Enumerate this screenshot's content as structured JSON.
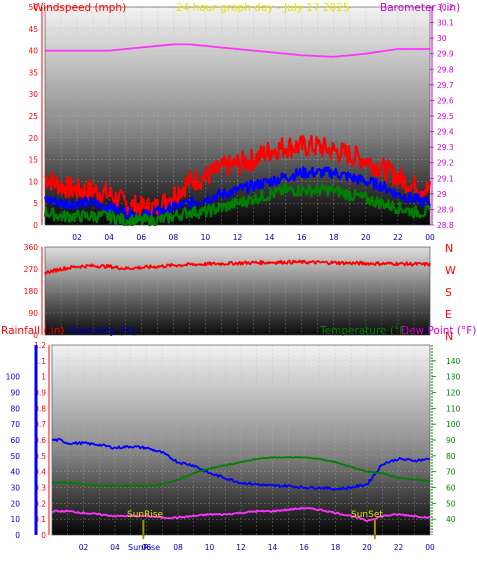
{
  "header": {
    "wind_title": "Windspeed (mph)",
    "main_title": "24 hour graph day - July 17 2025",
    "baro_title": "Barometer (.in)"
  },
  "panel3_header": {
    "rain_title": "Rainfall (.in)",
    "hum_title": "Humidity (%)",
    "temp_title": "Temperature (°F)",
    "dew_title": "Dew Point (°F)"
  },
  "labels": {
    "sunrise": "SunRise",
    "sunset": "SunSet",
    "sunrise_axis": "SunRise"
  },
  "colors": {
    "wind_gust": "#ff0000",
    "wind_avg": "#0000ff",
    "wind_low": "#008000",
    "barometer": "#ff33ff",
    "wind_dir": "#ff0000",
    "humidity": "#0000ff",
    "temperature": "#008000",
    "dew_point": "#ff33ff",
    "sun_marker": "#999900",
    "wind_axis_text": "#ff0000",
    "baro_axis_text": "#cc00cc",
    "main_title_text": "#e6e600"
  },
  "chart_data": [
    {
      "type": "line",
      "title": "24 hour graph day - July 17 2025",
      "xlabel": "",
      "ylabel": "Windspeed (mph)",
      "y2label": "Barometer (.in)",
      "x_ticks": [
        "02",
        "04",
        "06",
        "08",
        "10",
        "12",
        "14",
        "16",
        "18",
        "20",
        "22",
        "00"
      ],
      "ylim": [
        0,
        50
      ],
      "y_ticks": [
        0,
        5,
        10,
        15,
        20,
        25,
        30,
        35,
        40,
        45,
        50
      ],
      "y2lim": [
        28.8,
        30.2
      ],
      "y2_ticks": [
        "28.8",
        "28.9",
        "29",
        "29.1",
        "29.2",
        "29.3",
        "29.4",
        "29.5",
        "29.6",
        "29.7",
        "29.8",
        "29.9",
        "30",
        "30.1",
        "30.2"
      ],
      "grid": true,
      "series": [
        {
          "name": "Windspeed (mph)",
          "role": "gust",
          "x": [
            0,
            1,
            2,
            3,
            4,
            5,
            6,
            7,
            8,
            9,
            10,
            11,
            12,
            13,
            14,
            15,
            16,
            17,
            18,
            19,
            20,
            21,
            22,
            23,
            24
          ],
          "y": [
            11,
            9,
            8,
            8,
            7,
            5,
            4,
            4,
            7,
            10,
            11,
            13,
            14,
            15,
            17,
            18,
            18,
            18,
            17,
            16,
            15,
            13,
            11,
            9,
            8
          ]
        },
        {
          "role": "average",
          "x": [
            0,
            1,
            2,
            3,
            4,
            5,
            6,
            7,
            8,
            9,
            10,
            11,
            12,
            13,
            14,
            15,
            16,
            17,
            18,
            19,
            20,
            21,
            22,
            23,
            24
          ],
          "y": [
            6,
            5,
            5,
            5,
            4,
            3,
            2,
            3,
            4,
            5,
            6,
            7,
            8,
            9,
            10,
            11,
            12,
            12,
            12,
            11,
            10,
            9,
            7,
            6,
            5
          ]
        },
        {
          "role": "low",
          "x": [
            0,
            1,
            2,
            3,
            4,
            5,
            6,
            7,
            8,
            9,
            10,
            11,
            12,
            13,
            14,
            15,
            16,
            17,
            18,
            19,
            20,
            21,
            22,
            23,
            24
          ],
          "y": [
            3,
            2,
            2,
            2,
            2,
            1,
            1,
            1,
            2,
            3,
            3,
            4,
            5,
            6,
            7,
            8,
            8,
            8,
            8,
            7,
            6,
            5,
            4,
            3,
            3
          ]
        },
        {
          "name": "Barometer (.in)",
          "axis": "y2",
          "x": [
            0,
            2,
            4,
            6,
            8,
            9,
            10,
            12,
            14,
            16,
            18,
            20,
            22,
            24
          ],
          "y": [
            29.92,
            29.92,
            29.92,
            29.94,
            29.96,
            29.96,
            29.95,
            29.93,
            29.91,
            29.89,
            29.88,
            29.9,
            29.93,
            29.93
          ]
        }
      ]
    },
    {
      "type": "line",
      "title": "",
      "ylabel": "",
      "y_ticks": [
        0,
        90,
        180,
        270,
        360
      ],
      "ylim": [
        0,
        360
      ],
      "direction_labels": [
        "N",
        "W",
        "S",
        "E",
        "N"
      ],
      "grid": true,
      "series": [
        {
          "role": "wind direction",
          "x": [
            0,
            1,
            2,
            3,
            4,
            5,
            6,
            7,
            8,
            9,
            10,
            11,
            12,
            13,
            14,
            15,
            16,
            17,
            18,
            19,
            20,
            21,
            22,
            23,
            24
          ],
          "y": [
            255,
            270,
            280,
            283,
            280,
            272,
            276,
            280,
            285,
            288,
            290,
            292,
            294,
            296,
            297,
            298,
            298,
            297,
            296,
            294,
            293,
            292,
            292,
            290,
            289
          ]
        }
      ]
    },
    {
      "type": "line",
      "title": "",
      "ylabel": "Rainfall (.in)",
      "y2label": "Temperature (°F)",
      "x_ticks": [
        "02",
        "04",
        "06",
        "08",
        "10",
        "12",
        "14",
        "16",
        "18",
        "20",
        "22",
        "00"
      ],
      "ylim": [
        0,
        1.2
      ],
      "y_ticks": [
        "0",
        "0.1",
        "0.2",
        "0.3",
        "0.4",
        "0.5",
        "0.6",
        "0.7",
        "0.8",
        "0.9",
        "1",
        "1.1",
        "1.2"
      ],
      "hum_ticks": [
        0,
        10,
        20,
        30,
        40,
        50,
        60,
        70,
        80,
        90,
        100
      ],
      "y2lim": [
        30,
        150
      ],
      "y2_ticks": [
        40,
        50,
        60,
        70,
        80,
        90,
        100,
        110,
        120,
        130,
        140
      ],
      "grid": true,
      "series": [
        {
          "name": "Humidity (%)",
          "axis": "humidity",
          "x": [
            0,
            0.5,
            1,
            2,
            3,
            4,
            5,
            6,
            7,
            8,
            9,
            10,
            11,
            12,
            13,
            14,
            15,
            16,
            17,
            18,
            19,
            20,
            21,
            22,
            23,
            24
          ],
          "y": [
            60,
            60,
            58,
            58,
            57,
            55,
            56,
            55,
            52,
            46,
            44,
            39,
            36,
            33,
            32,
            31,
            31,
            30,
            30,
            29,
            30,
            32,
            45,
            48,
            47,
            48
          ]
        },
        {
          "name": "Temperature (°F)",
          "axis": "y2",
          "x": [
            0,
            1,
            2,
            3,
            4,
            5,
            6,
            7,
            8,
            9,
            10,
            11,
            12,
            13,
            14,
            15,
            16,
            17,
            18,
            19,
            20,
            21,
            22,
            23,
            24
          ],
          "y": [
            63,
            63,
            62,
            61,
            61,
            61,
            61,
            62,
            65,
            69,
            72,
            74,
            76,
            78,
            79,
            79,
            79,
            78,
            76,
            73,
            70,
            69,
            66,
            65,
            64
          ]
        },
        {
          "name": "Dew Point (°F)",
          "axis": "y2",
          "x": [
            0,
            1,
            2,
            3,
            4,
            5,
            6,
            7,
            8,
            9,
            10,
            11,
            12,
            13,
            14,
            15,
            16,
            17,
            18,
            19,
            20,
            21,
            22,
            23,
            24
          ],
          "y": [
            45,
            45,
            44,
            43,
            42,
            42,
            42,
            41,
            41,
            42,
            43,
            43,
            44,
            45,
            45,
            46,
            47,
            46,
            44,
            42,
            39,
            42,
            43,
            42,
            41
          ]
        }
      ],
      "annotations": {
        "sunrise_hour": 5.8,
        "sunset_hour": 20.5
      }
    }
  ]
}
